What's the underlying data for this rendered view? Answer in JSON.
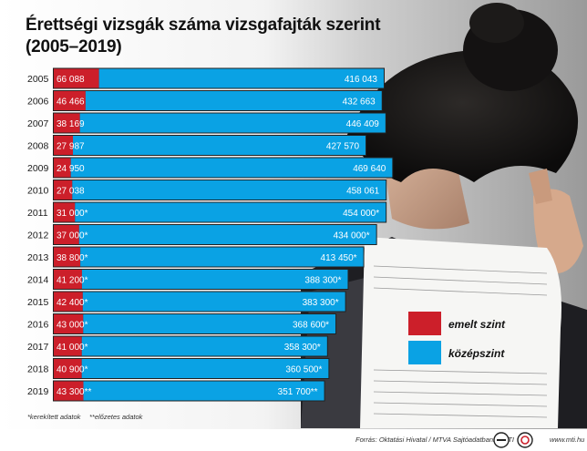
{
  "header": {
    "title": "Érettségi vizsgák száma vizsgafajták szerint",
    "subtitle": "(2005–2019)"
  },
  "colors": {
    "emelt": "#cc1f2a",
    "kozep": "#0aa2e4",
    "dark_line": "#222222"
  },
  "legend": {
    "emelt_label": "emelt szint",
    "kozep_label": "középszint"
  },
  "notes": {
    "rounded": "*kerekített adatok",
    "preliminary": "**előzetes adatok"
  },
  "footer": {
    "source": "Forrás: Oktatási Hivatal / MTVA Sajtóadatbank / MTI",
    "site": "www.mti.hu"
  },
  "icons": [
    "mtva-logo-icon",
    "mti-logo-icon"
  ],
  "chart_data": {
    "type": "bar",
    "orientation": "horizontal",
    "stacked": true,
    "categories": [
      "2005",
      "2006",
      "2007",
      "2008",
      "2009",
      "2010",
      "2011",
      "2012",
      "2013",
      "2014",
      "2015",
      "2016",
      "2017",
      "2018",
      "2019"
    ],
    "series": [
      {
        "name": "emelt szint",
        "values": [
          66088,
          46466,
          38169,
          27987,
          24950,
          27038,
          31000,
          37000,
          38800,
          41200,
          42400,
          43000,
          41000,
          40900,
          43300
        ],
        "labels": [
          "66 088",
          "46 466",
          "38 169",
          "27 987",
          "24 950",
          "27 038",
          "31 000*",
          "37 000*",
          "38 800*",
          "41 200*",
          "42 400*",
          "43 000*",
          "41 000*",
          "40 900*",
          "43 300**"
        ]
      },
      {
        "name": "középszint",
        "values": [
          416043,
          432663,
          446409,
          427570,
          469640,
          458061,
          454000,
          434000,
          413450,
          388300,
          383300,
          368600,
          358300,
          360500,
          351700
        ],
        "labels": [
          "416 043",
          "432 663",
          "446 409",
          "427 570",
          "469 640",
          "458 061",
          "454 000*",
          "434 000*",
          "413 450*",
          "388 300*",
          "383 300*",
          "368 600*",
          "358 300*",
          "360 500*",
          "351 700**"
        ]
      }
    ],
    "title": "Érettségi vizsgák száma vizsgafajták szerint",
    "subtitle": "(2005–2019)",
    "legend_position": "right",
    "grid": false
  }
}
